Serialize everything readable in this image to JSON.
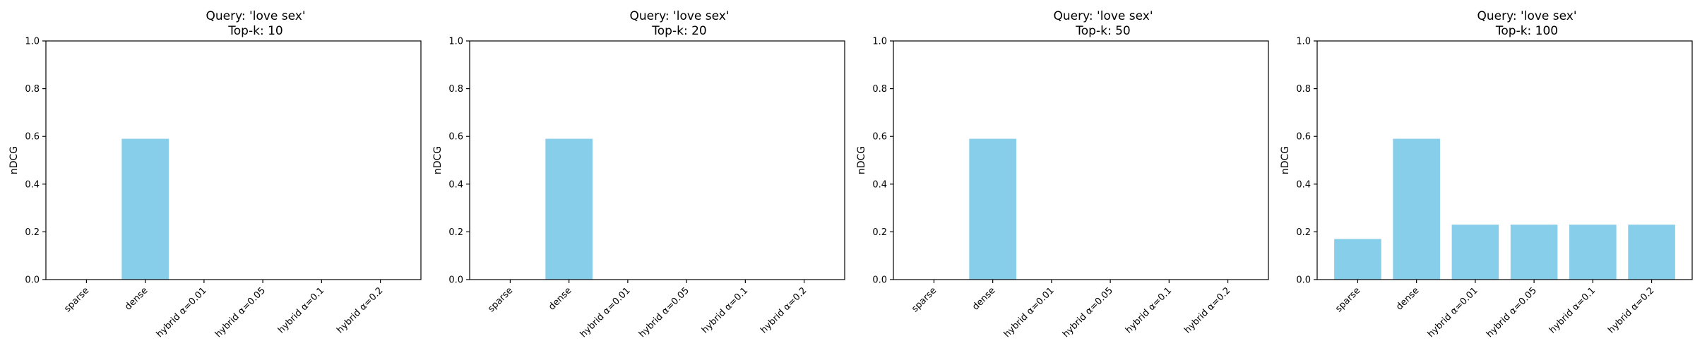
{
  "chart_data": [
    {
      "type": "bar",
      "title_line1": "Query: 'love sex'",
      "title_line2": "Top-k: 10",
      "ylabel": "nDCG",
      "ylim": [
        0,
        1
      ],
      "yticks": [
        "0.0",
        "0.2",
        "0.4",
        "0.6",
        "0.8",
        "1.0"
      ],
      "categories": [
        "sparse",
        "dense",
        "hybrid α=0.01",
        "hybrid α=0.05",
        "hybrid α=0.1",
        "hybrid α=0.2"
      ],
      "values": [
        0,
        0.59,
        0,
        0,
        0,
        0
      ],
      "bar_color": "#87CEEB"
    },
    {
      "type": "bar",
      "title_line1": "Query: 'love sex'",
      "title_line2": "Top-k: 20",
      "ylabel": "nDCG",
      "ylim": [
        0,
        1
      ],
      "yticks": [
        "0.0",
        "0.2",
        "0.4",
        "0.6",
        "0.8",
        "1.0"
      ],
      "categories": [
        "sparse",
        "dense",
        "hybrid α=0.01",
        "hybrid α=0.05",
        "hybrid α=0.1",
        "hybrid α=0.2"
      ],
      "values": [
        0,
        0.59,
        0,
        0,
        0,
        0
      ],
      "bar_color": "#87CEEB"
    },
    {
      "type": "bar",
      "title_line1": "Query: 'love sex'",
      "title_line2": "Top-k: 50",
      "ylabel": "nDCG",
      "ylim": [
        0,
        1
      ],
      "yticks": [
        "0.0",
        "0.2",
        "0.4",
        "0.6",
        "0.8",
        "1.0"
      ],
      "categories": [
        "sparse",
        "dense",
        "hybrid α=0.01",
        "hybrid α=0.05",
        "hybrid α=0.1",
        "hybrid α=0.2"
      ],
      "values": [
        0,
        0.59,
        0,
        0,
        0,
        0
      ],
      "bar_color": "#87CEEB"
    },
    {
      "type": "bar",
      "title_line1": "Query: 'love sex'",
      "title_line2": "Top-k: 100",
      "ylabel": "nDCG",
      "ylim": [
        0,
        1
      ],
      "yticks": [
        "0.0",
        "0.2",
        "0.4",
        "0.6",
        "0.8",
        "1.0"
      ],
      "categories": [
        "sparse",
        "dense",
        "hybrid α=0.01",
        "hybrid α=0.05",
        "hybrid α=0.1",
        "hybrid α=0.2"
      ],
      "values": [
        0.17,
        0.59,
        0.23,
        0.23,
        0.23,
        0.23
      ],
      "bar_color": "#87CEEB"
    }
  ]
}
